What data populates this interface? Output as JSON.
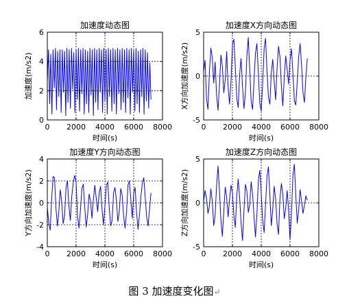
{
  "caption": "图 3  加速度变化图",
  "caption_mark": "↵",
  "chart_data": [
    {
      "type": "line",
      "title": "加速度动态图",
      "xlabel": "时间(s)",
      "ylabel": "加速度(m/s2)",
      "xlim": [
        0,
        8000
      ],
      "ylim": [
        0,
        6
      ],
      "xticks": [
        0,
        2000,
        4000,
        6000,
        8000
      ],
      "yticks": [
        0,
        2,
        4,
        6
      ],
      "grid": "dotted at x=2000,4000,6000 and y=2,4",
      "series_color": "#0000ff",
      "x": [
        0,
        80,
        160,
        240,
        320,
        400,
        480,
        560,
        640,
        720,
        800,
        880,
        960,
        1040,
        1120,
        1200,
        1280,
        1360,
        1440,
        1520,
        1600,
        1680,
        1760,
        1840,
        1920,
        2000,
        2080,
        2160,
        2240,
        2320,
        2400,
        2480,
        2560,
        2640,
        2720,
        2800,
        2880,
        2960,
        3040,
        3120,
        3200,
        3280,
        3360,
        3440,
        3520,
        3600,
        3680,
        3760,
        3840,
        3920,
        4000,
        4080,
        4160,
        4240,
        4320,
        4400,
        4480,
        4560,
        4640,
        4720,
        4800,
        4880,
        4960,
        5040,
        5120,
        5200,
        5280,
        5360,
        5440,
        5520,
        5600,
        5680,
        5760,
        5840,
        5920,
        6000,
        6080,
        6160,
        6240,
        6320,
        6400,
        6480,
        6560,
        6640,
        6720,
        6800,
        6880,
        6960,
        7040,
        7120,
        7200
      ],
      "y": [
        2.6,
        4.8,
        1.1,
        4.5,
        0.4,
        4.8,
        2.2,
        4.9,
        0.7,
        4.7,
        1.6,
        4.8,
        0.5,
        4.8,
        1.9,
        4.7,
        0.3,
        4.9,
        1.2,
        4.8,
        0.8,
        4.9,
        2.1,
        4.6,
        0.5,
        4.8,
        1.4,
        4.9,
        0.6,
        4.8,
        1.8,
        4.9,
        0.4,
        4.8,
        1.1,
        4.7,
        0.5,
        4.9,
        1.7,
        4.8,
        0.3,
        4.9,
        1.2,
        4.8,
        0.7,
        4.9,
        1.9,
        4.8,
        0.5,
        4.9,
        1.3,
        4.8,
        0.4,
        4.9,
        1.6,
        4.8,
        0.6,
        4.9,
        1.1,
        4.8,
        0.4,
        4.9,
        1.8,
        4.8,
        0.7,
        4.9,
        1.2,
        4.8,
        0.5,
        4.9,
        1.5,
        4.8,
        0.4,
        4.9,
        1.9,
        4.8,
        0.6,
        4.9,
        1.1,
        4.7,
        0.5,
        4.8,
        1.6,
        4.9,
        0.4,
        4.8,
        1.3,
        4.6,
        0.8,
        3.9,
        1.4
      ]
    },
    {
      "type": "line",
      "title": "加速度X方向动态图",
      "xlabel": "时间(s)",
      "ylabel": "X方向加速度(m/s2)",
      "xlim": [
        0,
        8000
      ],
      "ylim": [
        -5,
        5
      ],
      "xticks": [
        0,
        2000,
        4000,
        6000,
        8000
      ],
      "yticks": [
        -5,
        0,
        5
      ],
      "grid": "dotted at x=2000,4000,6000 and y=0",
      "series_color": "#0000ff",
      "x": [
        0,
        100,
        200,
        300,
        400,
        500,
        600,
        700,
        800,
        900,
        1000,
        1100,
        1200,
        1300,
        1400,
        1500,
        1600,
        1700,
        1800,
        1900,
        2000,
        2100,
        2200,
        2300,
        2400,
        2500,
        2600,
        2700,
        2800,
        2900,
        3000,
        3100,
        3200,
        3300,
        3400,
        3500,
        3600,
        3700,
        3800,
        3900,
        4000,
        4100,
        4200,
        4300,
        4400,
        4500,
        4600,
        4700,
        4800,
        4900,
        5000,
        5100,
        5200,
        5300,
        5400,
        5500,
        5600,
        5700,
        5800,
        5900,
        6000,
        6100,
        6200,
        6300,
        6400,
        6500,
        6600,
        6700,
        6800,
        6900,
        7000,
        7100,
        7200
      ],
      "y": [
        0.5,
        1.8,
        -2.6,
        -3.8,
        0.4,
        3.2,
        2.1,
        -0.8,
        1.6,
        -2.2,
        -3.9,
        -1.0,
        2.4,
        1.1,
        -1.9,
        -0.4,
        2.8,
        -1.3,
        -3.2,
        -0.6,
        3.6,
        4.2,
        1.0,
        -2.5,
        -3.6,
        0.2,
        2.0,
        -1.2,
        -3.7,
        -2.0,
        2.2,
        4.4,
        0.8,
        -2.9,
        -3.8,
        -0.5,
        2.6,
        3.7,
        0.3,
        -3.1,
        -4.0,
        -0.8,
        3.1,
        4.3,
        0.6,
        -2.4,
        -3.2,
        0.4,
        1.9,
        -0.6,
        -2.7,
        0.9,
        3.4,
        2.2,
        -1.1,
        -3.4,
        -0.2,
        2.3,
        0.7,
        -0.9,
        1.8,
        3.1,
        0.4,
        -2.8,
        -3.3,
        -0.7,
        2.2,
        3.7,
        1.3,
        -1.9,
        -3.0,
        -0.1,
        2.0
      ]
    },
    {
      "type": "line",
      "title": "加速度Y方向动态图",
      "xlabel": "时间(s)",
      "ylabel": "Y方向加速度(m/s2)",
      "xlim": [
        0,
        8000
      ],
      "ylim": [
        -4,
        4
      ],
      "xticks": [
        0,
        2000,
        4000,
        6000,
        8000
      ],
      "yticks": [
        -4,
        -2,
        0,
        2,
        4
      ],
      "grid": "dotted at x=2000,4000,6000 and y=-2,0,2",
      "series_color": "#0000ff",
      "x": [
        0,
        100,
        200,
        300,
        400,
        500,
        600,
        700,
        800,
        900,
        1000,
        1100,
        1200,
        1300,
        1400,
        1500,
        1600,
        1700,
        1800,
        1900,
        2000,
        2100,
        2200,
        2300,
        2400,
        2500,
        2600,
        2700,
        2800,
        2900,
        3000,
        3100,
        3200,
        3300,
        3400,
        3500,
        3600,
        3700,
        3800,
        3900,
        4000,
        4100,
        4200,
        4300,
        4400,
        4500,
        4600,
        4700,
        4800,
        4900,
        5000,
        5100,
        5200,
        5300,
        5400,
        5500,
        5600,
        5700,
        5800,
        5900,
        6000,
        6100,
        6200,
        6300,
        6400,
        6500,
        6600,
        6700,
        6800,
        6900,
        7000,
        7100,
        7200
      ],
      "y": [
        -0.4,
        -1.8,
        -2.5,
        0.3,
        2.4,
        2.3,
        -0.5,
        -2.1,
        -0.8,
        1.2,
        0.1,
        -1.9,
        -1.2,
        1.4,
        2.0,
        -0.3,
        -1.6,
        0.6,
        1.8,
        2.5,
        1.9,
        -1.2,
        -2.3,
        -0.7,
        1.3,
        1.7,
        -0.4,
        -2.2,
        -1.1,
        0.8,
        0.2,
        -1.4,
        0.3,
        1.6,
        0.4,
        -0.8,
        0.9,
        1.5,
        -0.6,
        -2.0,
        -0.3,
        1.6,
        1.9,
        -0.4,
        -2.1,
        -1.6,
        0.9,
        1.4,
        0.2,
        -1.7,
        -0.8,
        1.3,
        0.7,
        -1.2,
        -2.3,
        -0.9,
        1.6,
        2.0,
        0.3,
        -1.4,
        0.9,
        1.4,
        -0.9,
        -2.4,
        -1.1,
        0.6,
        1.8,
        2.3,
        0.5,
        -1.3,
        -2.1,
        -0.6,
        0.9
      ]
    },
    {
      "type": "line",
      "title": "加速度Z方向动态图",
      "xlabel": "时间(s)",
      "ylabel": "Z方向加速度(m/s2)",
      "xlim": [
        0,
        8000
      ],
      "ylim": [
        -5,
        5
      ],
      "xticks": [
        0,
        2000,
        4000,
        6000,
        8000
      ],
      "yticks": [
        -5,
        0,
        5
      ],
      "grid": "dotted at x=2000,4000,6000 and y=0",
      "series_color": "#0000ff",
      "x": [
        0,
        100,
        200,
        300,
        400,
        500,
        600,
        700,
        800,
        900,
        1000,
        1100,
        1200,
        1300,
        1400,
        1500,
        1600,
        1700,
        1800,
        1900,
        2000,
        2100,
        2200,
        2300,
        2400,
        2500,
        2600,
        2700,
        2800,
        2900,
        3000,
        3100,
        3200,
        3300,
        3400,
        3500,
        3600,
        3700,
        3800,
        3900,
        4000,
        4100,
        4200,
        4300,
        4400,
        4500,
        4600,
        4700,
        4800,
        4900,
        5000,
        5100,
        5200,
        5300,
        5400,
        5500,
        5600,
        5700,
        5800,
        5900,
        6000,
        6100,
        6200,
        6300,
        6400,
        6500,
        6600,
        6700,
        6800,
        6900,
        7000,
        7100,
        7200
      ],
      "y": [
        0.2,
        1.4,
        0.5,
        -1.2,
        -0.4,
        1.6,
        0.2,
        -2.6,
        -1.4,
        2.0,
        4.2,
        1.3,
        -2.0,
        -3.8,
        -1.0,
        1.8,
        0.6,
        -1.6,
        0.4,
        2.0,
        1.2,
        -1.5,
        -2.8,
        0.8,
        2.7,
        0.6,
        -2.3,
        -4.3,
        -0.9,
        2.1,
        1.4,
        -1.1,
        -0.2,
        2.4,
        1.0,
        -1.6,
        -3.9,
        -1.3,
        2.6,
        3.7,
        1.1,
        -2.0,
        -3.4,
        -0.2,
        3.0,
        4.1,
        0.8,
        -2.6,
        -0.7,
        1.9,
        0.4,
        -2.4,
        -3.6,
        0.5,
        2.2,
        1.0,
        -1.8,
        -0.6,
        1.4,
        -0.8,
        -4.2,
        -1.2,
        3.1,
        4.4,
        0.9,
        -2.3,
        -0.8,
        1.5,
        0.2,
        -1.2,
        -0.3,
        0.8,
        0.3
      ]
    }
  ]
}
